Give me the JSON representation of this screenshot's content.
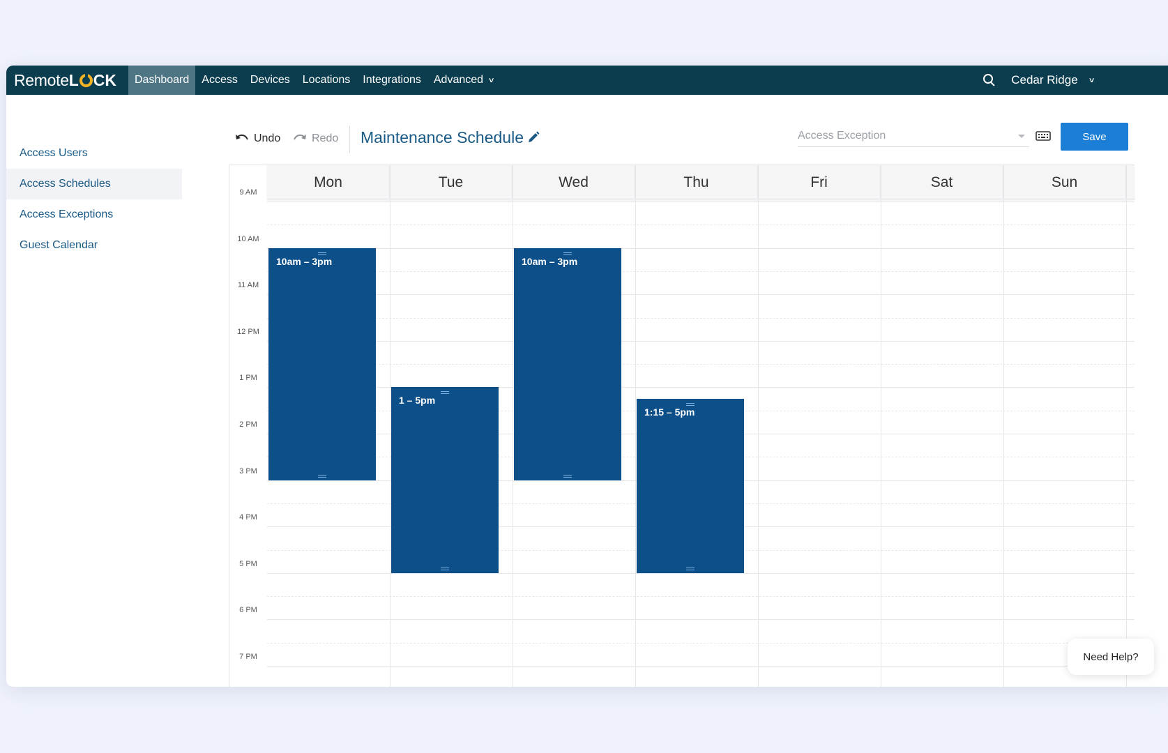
{
  "brand": {
    "name_prefix": "Remote",
    "name_l": "L",
    "name_suffix": "CK",
    "accent": "#f3b324"
  },
  "nav": {
    "items": [
      {
        "label": "Dashboard",
        "active": true
      },
      {
        "label": "Access"
      },
      {
        "label": "Devices"
      },
      {
        "label": "Locations"
      },
      {
        "label": "Integrations"
      },
      {
        "label": "Advanced"
      }
    ],
    "location": "Cedar Ridge"
  },
  "sidebar": {
    "items": [
      {
        "label": "Access Users"
      },
      {
        "label": "Access Schedules",
        "active": true
      },
      {
        "label": "Access Exceptions"
      },
      {
        "label": "Guest Calendar"
      }
    ]
  },
  "toolbar": {
    "undo_label": "Undo",
    "redo_label": "Redo",
    "schedule_title": "Maintenance Schedule",
    "exception_placeholder": "Access Exception",
    "save_label": "Save"
  },
  "calendar": {
    "days": [
      "Mon",
      "Tue",
      "Wed",
      "Thu",
      "Fri",
      "Sat",
      "Sun"
    ],
    "hours": [
      "9 AM",
      "10 AM",
      "11 AM",
      "12 PM",
      "1 PM",
      "2 PM",
      "3 PM",
      "4 PM",
      "5 PM",
      "6 PM",
      "7 PM"
    ],
    "events": [
      {
        "day": "Mon",
        "label": "10am – 3pm",
        "start": 10,
        "end": 15
      },
      {
        "day": "Tue",
        "label": "1 – 5pm",
        "start": 13,
        "end": 17
      },
      {
        "day": "Wed",
        "label": "10am – 3pm",
        "start": 10,
        "end": 15
      },
      {
        "day": "Thu",
        "label": "1:15 – 5pm",
        "start": 13.25,
        "end": 17
      }
    ]
  },
  "help": {
    "label": "Need Help?"
  },
  "colors": {
    "nav_bg": "#0c3d4f",
    "nav_active": "#4d7584",
    "event": "#0d5089",
    "save": "#1b7fd8",
    "link": "#1a5a86"
  }
}
